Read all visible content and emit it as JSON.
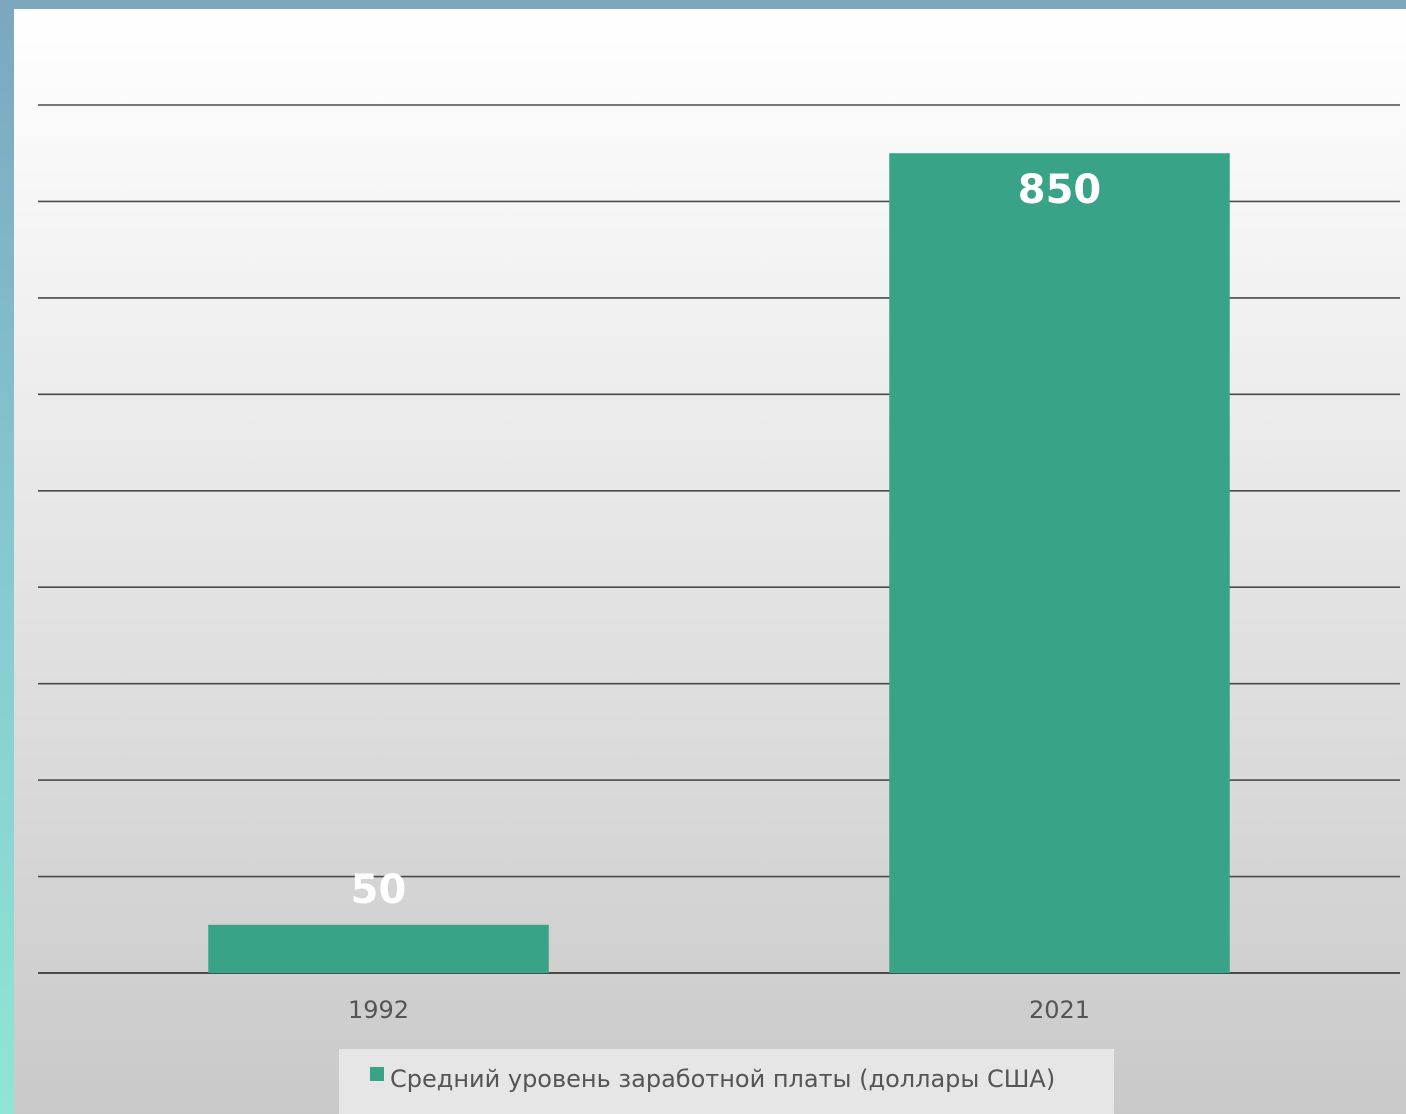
{
  "chart_data": {
    "type": "bar",
    "categories": [
      "1992",
      "2021"
    ],
    "series": [
      {
        "name": "Средний уровень заработной платы (доллары США)",
        "values": [
          50,
          850
        ],
        "data_labels": [
          "50",
          "850"
        ]
      }
    ],
    "title": "",
    "xlabel": "",
    "ylabel": "",
    "ylim": [
      0,
      900
    ],
    "y_gridline_step": 100,
    "y_tick_labels_visible": false,
    "grid": true,
    "legend": "bottom-center",
    "bar_color": "#38a386",
    "data_label_color": "#ffffff",
    "gridline_color": "#4a4a4a"
  }
}
